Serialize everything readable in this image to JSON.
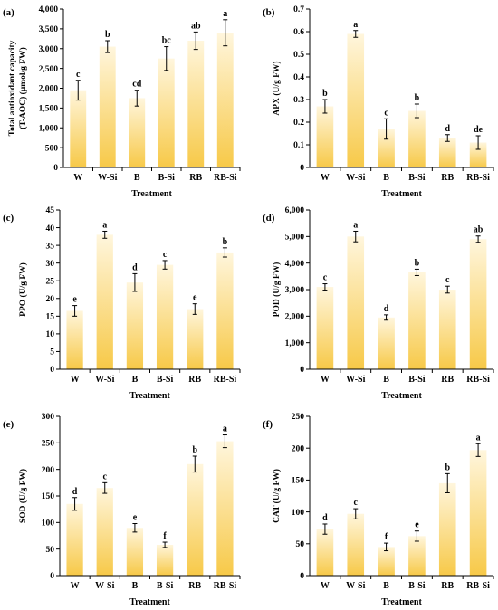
{
  "colors": {
    "bar_top": "#fff6dd",
    "bar_bottom": "#f7c948",
    "axis": "#000000"
  },
  "chart_data": [
    {
      "type": "bar",
      "panel": "(a)",
      "categories": [
        "W",
        "W-Si",
        "B",
        "B-Si",
        "RB",
        "RB-Si"
      ],
      "values": [
        1950,
        3050,
        1750,
        2750,
        3200,
        3400
      ],
      "errors": [
        250,
        150,
        200,
        300,
        220,
        330
      ],
      "letters": [
        "c",
        "b",
        "cd",
        "bc",
        "ab",
        "a"
      ],
      "xlabel": "Treatment",
      "ylabel": [
        "Total antioxidant capacity",
        "(T-AOC) (μmol/g FW)"
      ],
      "ylim": [
        0,
        4000
      ],
      "yticks": [
        0,
        500,
        1000,
        1500,
        2000,
        2500,
        3000,
        3500,
        4000
      ],
      "yticklabels": [
        "0",
        "500",
        "1,000",
        "1,500",
        "2,000",
        "2,500",
        "3,000",
        "3,500",
        "4,000"
      ]
    },
    {
      "type": "bar",
      "panel": "(b)",
      "categories": [
        "W",
        "W-Si",
        "B",
        "B-Si",
        "RB",
        "RB-Si"
      ],
      "values": [
        0.27,
        0.59,
        0.17,
        0.25,
        0.13,
        0.11
      ],
      "errors": [
        0.03,
        0.015,
        0.045,
        0.03,
        0.015,
        0.03
      ],
      "letters": [
        "b",
        "a",
        "c",
        "b",
        "d",
        "de"
      ],
      "xlabel": "Treatment",
      "ylabel": [
        "APX (U/g FW)"
      ],
      "ylim": [
        0,
        0.7
      ],
      "yticks": [
        0,
        0.1,
        0.2,
        0.3,
        0.4,
        0.5,
        0.6,
        0.7
      ],
      "yticklabels": [
        "0",
        "0.1",
        "0.2",
        "0.3",
        "0.4",
        "0.5",
        "0.6",
        "0.7"
      ]
    },
    {
      "type": "bar",
      "panel": "(c)",
      "categories": [
        "W",
        "W-Si",
        "B",
        "B-Si",
        "RB",
        "RB-Si"
      ],
      "values": [
        16.5,
        38,
        24.5,
        29.5,
        17,
        33
      ],
      "errors": [
        1.5,
        1.0,
        2.5,
        1.2,
        1.5,
        1.3
      ],
      "letters": [
        "e",
        "a",
        "d",
        "c",
        "e",
        "b"
      ],
      "xlabel": "Treatment",
      "ylabel": [
        "PPO (U/g FW)"
      ],
      "ylim": [
        0,
        45
      ],
      "yticks": [
        0,
        5,
        10,
        15,
        20,
        25,
        30,
        35,
        40,
        45
      ],
      "yticklabels": [
        "0",
        "5",
        "10",
        "15",
        "20",
        "25",
        "30",
        "35",
        "40",
        "45"
      ]
    },
    {
      "type": "bar",
      "panel": "(d)",
      "categories": [
        "W",
        "W-Si",
        "B",
        "B-Si",
        "RB",
        "RB-Si"
      ],
      "values": [
        3100,
        5000,
        1950,
        3650,
        3000,
        4900
      ],
      "errors": [
        120,
        200,
        100,
        120,
        130,
        120
      ],
      "letters": [
        "c",
        "a",
        "d",
        "b",
        "c",
        "ab"
      ],
      "xlabel": "Treatment",
      "ylabel": [
        "POD (U/g FW)"
      ],
      "ylim": [
        0,
        6000
      ],
      "yticks": [
        0,
        1000,
        2000,
        3000,
        4000,
        5000,
        6000
      ],
      "yticklabels": [
        "0",
        "1,000",
        "2,000",
        "3,000",
        "4,000",
        "5,000",
        "6,000"
      ]
    },
    {
      "type": "bar",
      "panel": "(e)",
      "categories": [
        "W",
        "W-Si",
        "B",
        "B-Si",
        "RB",
        "RB-Si"
      ],
      "values": [
        135,
        165,
        90,
        58,
        210,
        253
      ],
      "errors": [
        12,
        10,
        8,
        5,
        15,
        12
      ],
      "letters": [
        "d",
        "c",
        "e",
        "f",
        "b",
        "a"
      ],
      "xlabel": "Treatment",
      "ylabel": [
        "SOD (U/g FW)"
      ],
      "ylim": [
        0,
        300
      ],
      "yticks": [
        0,
        50,
        100,
        150,
        200,
        250,
        300
      ],
      "yticklabels": [
        "0",
        "50",
        "100",
        "150",
        "200",
        "250",
        "300"
      ]
    },
    {
      "type": "bar",
      "panel": "(f)",
      "categories": [
        "W",
        "W-Si",
        "B",
        "B-Si",
        "RB",
        "RB-Si"
      ],
      "values": [
        73,
        97,
        45,
        62,
        145,
        197
      ],
      "errors": [
        8,
        8,
        6,
        8,
        15,
        10
      ],
      "letters": [
        "d",
        "c",
        "f",
        "e",
        "b",
        "a"
      ],
      "xlabel": "Treatment",
      "ylabel": [
        "CAT (U/g FW)"
      ],
      "ylim": [
        0,
        250
      ],
      "yticks": [
        0,
        50,
        100,
        150,
        200,
        250
      ],
      "yticklabels": [
        "0",
        "50",
        "100",
        "150",
        "200",
        "250"
      ]
    }
  ]
}
